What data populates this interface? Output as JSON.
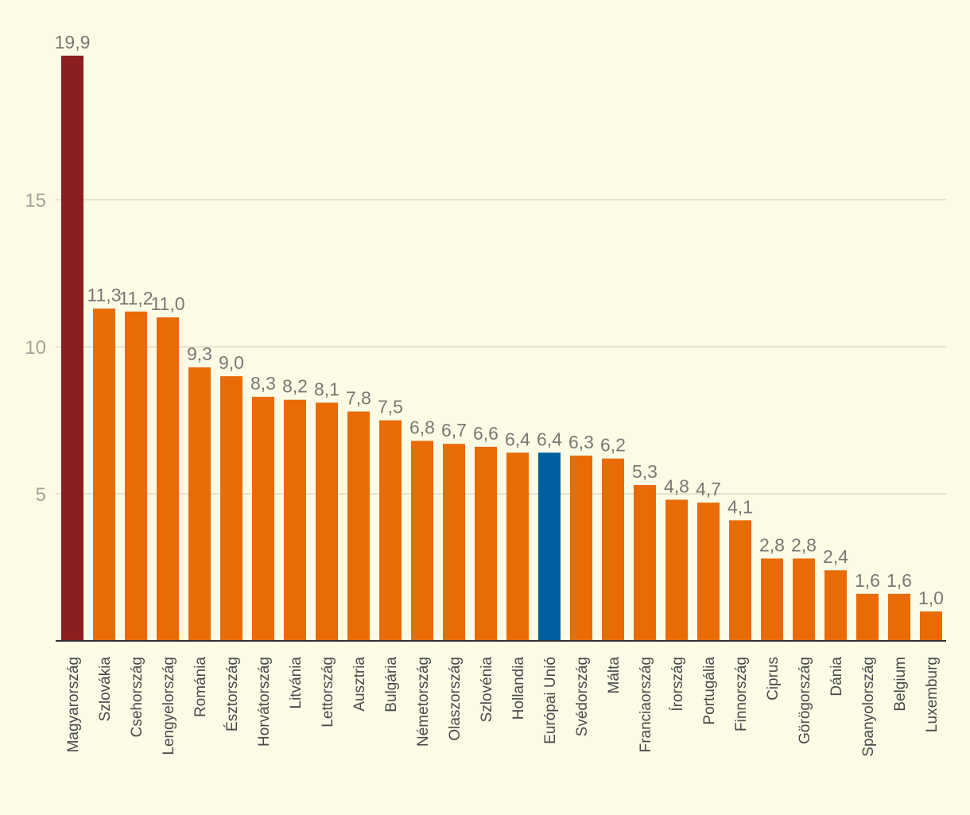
{
  "chart_data": {
    "type": "bar",
    "categories": [
      "Magyarország",
      "Szlovákia",
      "Csehország",
      "Lengyelország",
      "Románia",
      "Észtország",
      "Horvátország",
      "Litvánia",
      "Lettország",
      "Ausztria",
      "Bulgária",
      "Németország",
      "Olaszország",
      "Szlovénia",
      "Hollandia",
      "Európai Unió",
      "Svédország",
      "Málta",
      "Franciaország",
      "Írország",
      "Portugália",
      "Finnország",
      "Ciprus",
      "Görögország",
      "Dánia",
      "Spanyolország",
      "Belgium",
      "Luxemburg"
    ],
    "values": [
      19.9,
      11.3,
      11.2,
      11.0,
      9.3,
      9.0,
      8.3,
      8.2,
      8.1,
      7.8,
      7.5,
      6.8,
      6.7,
      6.6,
      6.4,
      6.4,
      6.3,
      6.2,
      5.3,
      4.8,
      4.7,
      4.1,
      2.8,
      2.8,
      2.4,
      1.6,
      1.6,
      1.0
    ],
    "value_labels": [
      "19,9",
      "11,3",
      "11,2",
      "11,0",
      "9,3",
      "9,0",
      "8,3",
      "8,2",
      "8,1",
      "7,8",
      "7,5",
      "6,8",
      "6,7",
      "6,6",
      "6,4",
      "6,4",
      "6,3",
      "6,2",
      "5,3",
      "4,8",
      "4,7",
      "4,1",
      "2,8",
      "2,8",
      "2,4",
      "1,6",
      "1,6",
      "1,0"
    ],
    "bar_colors": [
      "#8b1f1f",
      "#e96b06",
      "#e96b06",
      "#e96b06",
      "#e96b06",
      "#e96b06",
      "#e96b06",
      "#e96b06",
      "#e96b06",
      "#e96b06",
      "#e96b06",
      "#e96b06",
      "#e96b06",
      "#e96b06",
      "#e96b06",
      "#005f9f",
      "#e96b06",
      "#e96b06",
      "#e96b06",
      "#e96b06",
      "#e96b06",
      "#e96b06",
      "#e96b06",
      "#e96b06",
      "#e96b06",
      "#e96b06",
      "#e96b06",
      "#e96b06"
    ],
    "y_ticks": [
      5,
      10,
      15
    ],
    "y_tick_labels": [
      "5",
      "10",
      "15"
    ],
    "ylim": [
      0,
      19.9
    ],
    "grid": true,
    "colors": {
      "background": "#fbfbe6",
      "grid": "#dedbc8",
      "axis": "#333333",
      "label_text": "#7a7a74",
      "tick_text": "#a6a49a",
      "category_text": "#4a4a4a"
    }
  }
}
